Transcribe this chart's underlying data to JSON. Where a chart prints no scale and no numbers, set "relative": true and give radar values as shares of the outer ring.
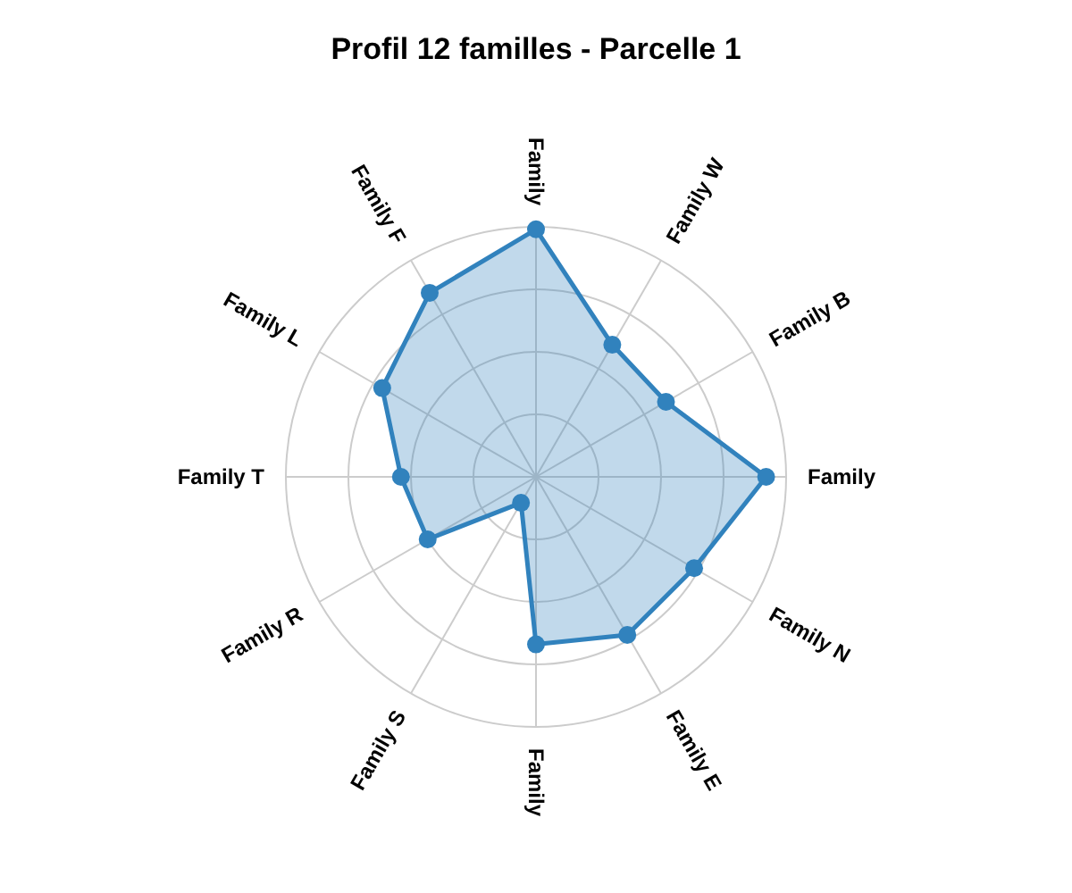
{
  "chart_data": {
    "type": "radar",
    "title": "Profil 12 familles - Parcelle 1",
    "relative": true,
    "grid": true,
    "marker": "circle",
    "categories": [
      "Family",
      "Family W",
      "Family B",
      "Family",
      "Family N",
      "Family E",
      "Family",
      "Family S",
      "Family R",
      "Family T",
      "Family L",
      "Family F"
    ],
    "series": [
      {
        "color": "#3182bd",
        "values": [
          0.99,
          0.61,
          0.6,
          0.92,
          0.73,
          0.73,
          0.67,
          0.12,
          0.5,
          0.54,
          0.71,
          0.85
        ]
      }
    ]
  }
}
